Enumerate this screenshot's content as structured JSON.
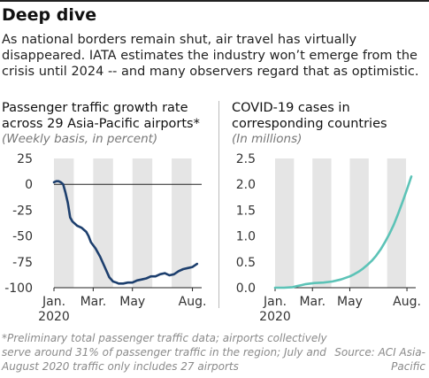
{
  "header": {
    "title": "Deep dive",
    "subtitle": "As national borders remain shut, air travel has virtually disappeared. IATA estimates the industry won’t emerge from the crisis until 2024 -- and many observers regard that as optimistic."
  },
  "footnote": "*Preliminary total passenger traffic data; airports collectively serve around 31% of passenger traffic in the region; July and August 2020 traffic only includes 27 airports",
  "source": "Source: ACI Asia-Pacific",
  "colors": {
    "left_line": "#1d3f6e",
    "right_line": "#5cc3b7",
    "band": "#e5e5e5",
    "zero_line": "#222222"
  },
  "chart_data": [
    {
      "type": "line",
      "title": "Passenger traffic growth rate across 29 Asia-Pacific airports*",
      "subtitle": "(Weekly basis, in percent)",
      "x_unit": "week of 2020",
      "ylim": [
        -100,
        25
      ],
      "yticks": [
        25,
        0,
        -25,
        -50,
        -75,
        -100
      ],
      "xlim": [
        1,
        33
      ],
      "xticks": [
        {
          "value": 1,
          "label": "Jan.",
          "label2": "2020"
        },
        {
          "value": 9.5,
          "label": "Mar.",
          "label2": ""
        },
        {
          "value": 18,
          "label": "May",
          "label2": ""
        },
        {
          "value": 31,
          "label": "Aug.",
          "label2": ""
        }
      ],
      "shaded_months": [
        [
          1,
          5.3
        ],
        [
          9.5,
          13.8
        ],
        [
          18,
          22.3
        ],
        [
          26.5,
          30.8
        ]
      ],
      "zero_line": true,
      "series": [
        {
          "x": [
            1,
            1.5,
            2,
            2.5,
            3,
            3.5,
            4,
            4.5,
            5,
            6,
            7,
            7.5,
            8,
            8.5,
            9,
            10,
            11,
            12,
            13,
            13.8,
            14.5,
            15,
            16,
            17,
            18,
            19,
            20,
            21,
            22,
            23,
            24,
            25,
            26,
            27,
            28,
            29,
            30,
            31,
            32
          ],
          "y": [
            2,
            3,
            3,
            2,
            0,
            -8,
            -18,
            -32,
            -36,
            -40,
            -42,
            -44,
            -46,
            -50,
            -56,
            -62,
            -70,
            -80,
            -90,
            -94,
            -95,
            -96,
            -96,
            -95,
            -95,
            -93,
            -92,
            -91,
            -89,
            -89,
            -87,
            -86,
            -88,
            -87,
            -84,
            -82,
            -81,
            -80,
            -77
          ]
        }
      ]
    },
    {
      "type": "line",
      "title": "COVID-19 cases in corresponding countries",
      "subtitle": "(In millions)",
      "ylim": [
        0,
        2.5
      ],
      "yticks": [
        2.5,
        2.0,
        1.5,
        1.0,
        0.5,
        0
      ],
      "xlim": [
        1,
        33
      ],
      "xticks": [
        {
          "value": 1,
          "label": "Jan.",
          "label2": "2020"
        },
        {
          "value": 9.5,
          "label": "Mar.",
          "label2": ""
        },
        {
          "value": 18,
          "label": "May",
          "label2": ""
        },
        {
          "value": 31,
          "label": "Aug.",
          "label2": ""
        }
      ],
      "shaded_months": [
        [
          1,
          5.3
        ],
        [
          9.5,
          13.8
        ],
        [
          18,
          22.3
        ],
        [
          26.5,
          30.8
        ]
      ],
      "series": [
        {
          "x": [
            1,
            3,
            5,
            6,
            7,
            8,
            9,
            10,
            12,
            14,
            16,
            18,
            19,
            20,
            21,
            22,
            23,
            24,
            25,
            26,
            27,
            28,
            29,
            30,
            31,
            32
          ],
          "y": [
            0,
            0.0,
            0.01,
            0.03,
            0.05,
            0.07,
            0.08,
            0.09,
            0.1,
            0.12,
            0.16,
            0.22,
            0.26,
            0.31,
            0.37,
            0.44,
            0.52,
            0.62,
            0.74,
            0.88,
            1.04,
            1.22,
            1.43,
            1.66,
            1.9,
            2.15
          ]
        }
      ]
    }
  ]
}
